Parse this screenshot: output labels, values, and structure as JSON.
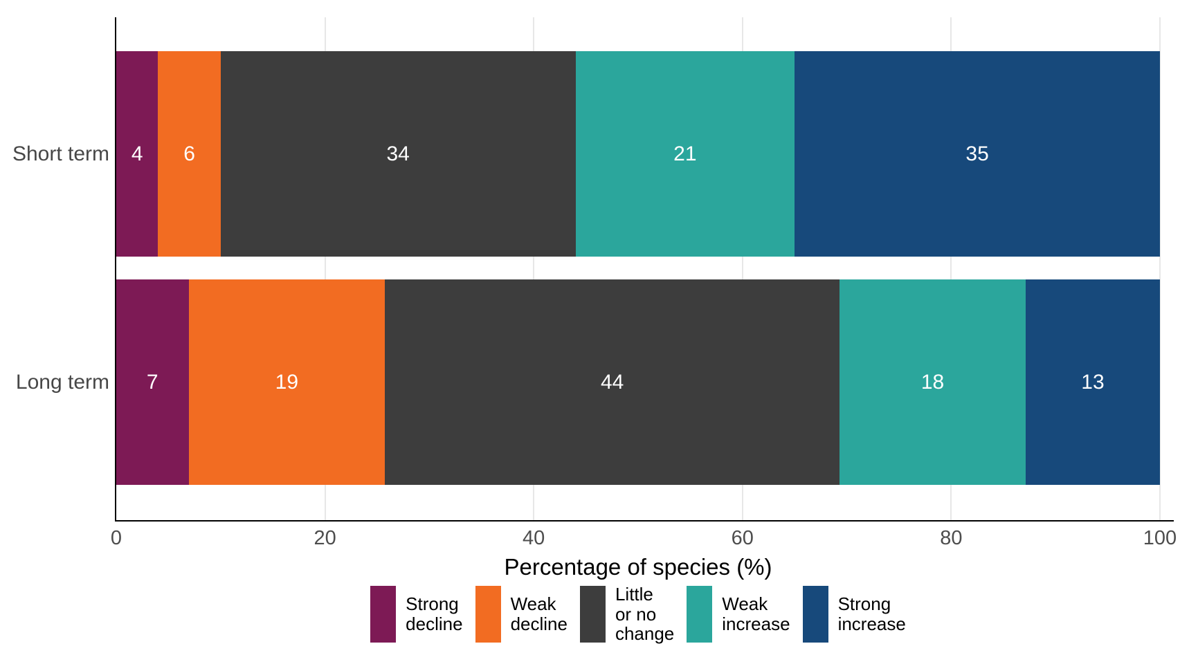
{
  "chart_data": {
    "type": "bar",
    "orientation": "horizontal",
    "stacked": true,
    "xlabel": "Percentage of species (%)",
    "xlim": [
      0,
      100
    ],
    "x_ticks": [
      "0",
      "20",
      "40",
      "60",
      "80",
      "100"
    ],
    "grid": "vertical",
    "legend_position": "bottom",
    "categories": [
      "Short term",
      "Long term"
    ],
    "series": [
      {
        "name": "Strong decline",
        "legend_label": "Strong\ndecline",
        "color": "#7D1A55",
        "values": [
          4,
          7
        ]
      },
      {
        "name": "Weak decline",
        "legend_label": "Weak\ndecline",
        "color": "#F26C22",
        "values": [
          6,
          19
        ]
      },
      {
        "name": "Little or no change",
        "legend_label": "Little\nor no\nchange",
        "color": "#3D3D3D",
        "values": [
          34,
          44
        ]
      },
      {
        "name": "Weak increase",
        "legend_label": "Weak\nincrease",
        "color": "#2BA69C",
        "values": [
          21,
          18
        ]
      },
      {
        "name": "Strong increase",
        "legend_label": "Strong\nincrease",
        "color": "#17497B",
        "values": [
          35,
          13
        ]
      }
    ]
  },
  "colors": {
    "background": "#FFFFFF",
    "axis_line": "#000000",
    "gridline": "#E7E7E7",
    "tick_label": "#4D4D4D",
    "category_label": "#474747",
    "bar_value_label": "#FFFFFF",
    "axis_title": "#000000",
    "legend_text": "#000000"
  }
}
